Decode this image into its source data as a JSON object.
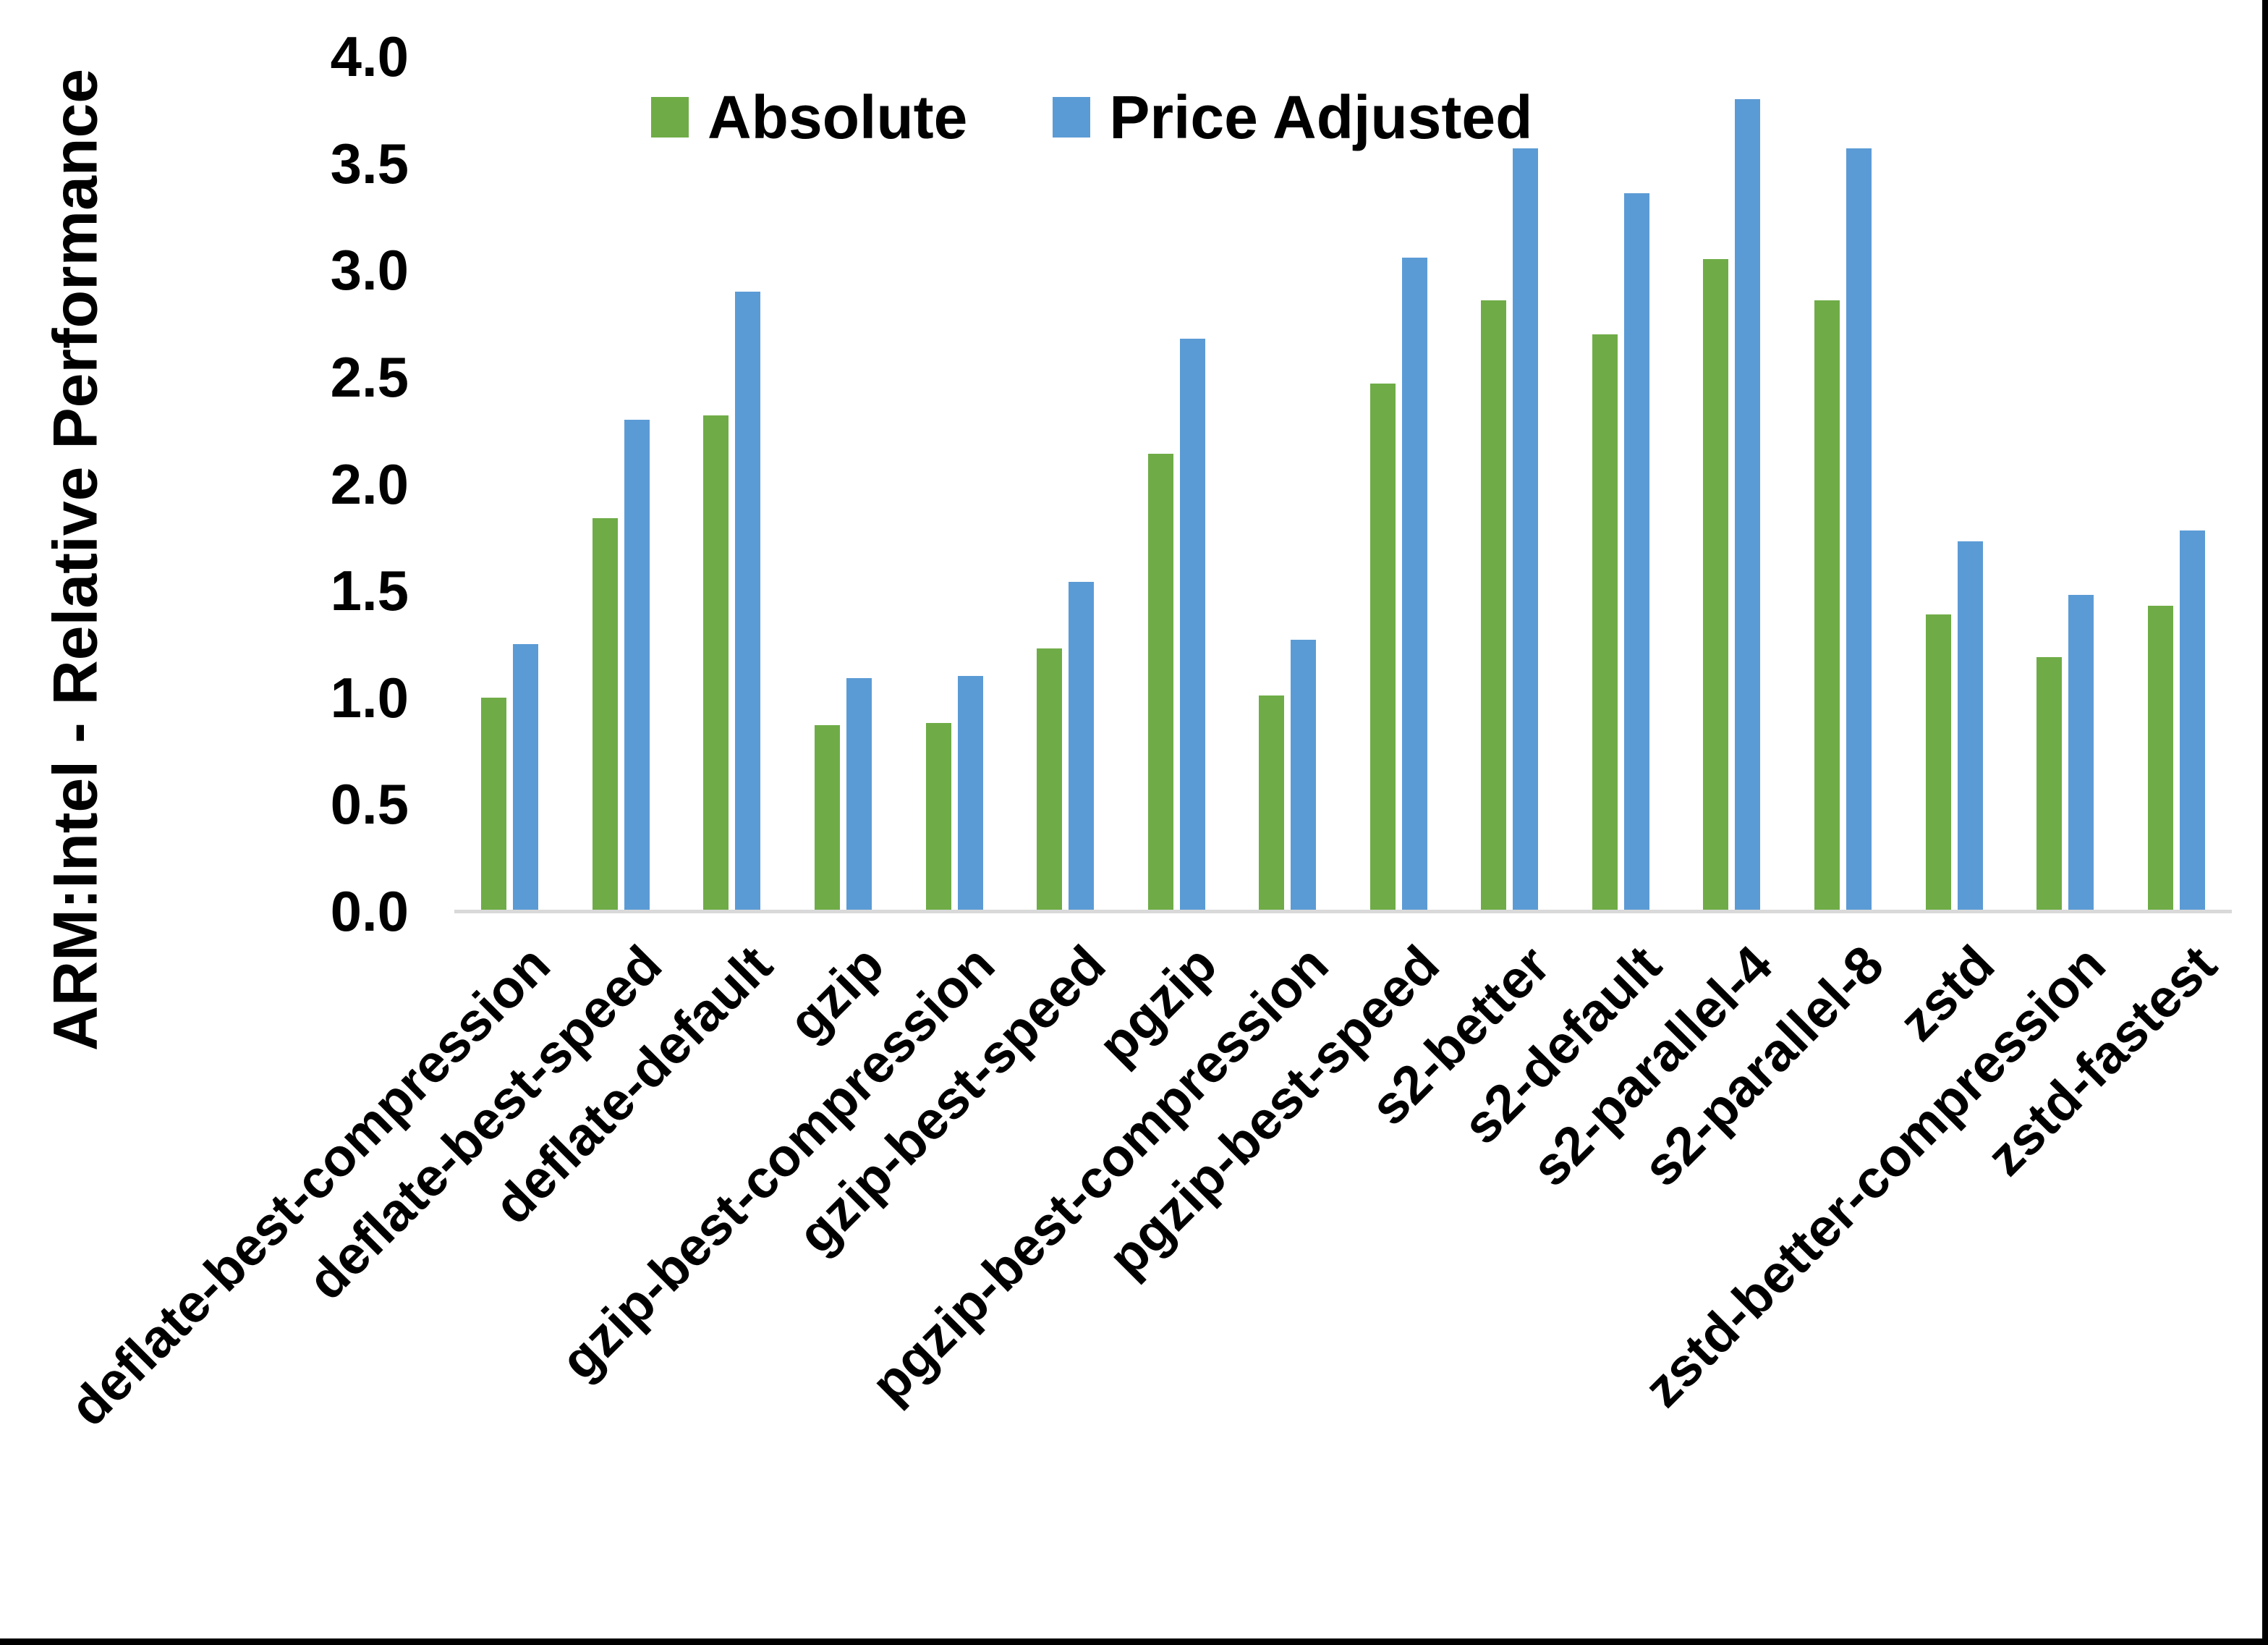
{
  "chart_data": {
    "type": "bar",
    "title": "",
    "ylabel": "ARM:Intel - Relative Performance",
    "xlabel": "",
    "ylim": [
      0.0,
      4.0
    ],
    "ytick_labels": [
      "0.0",
      "0.5",
      "1.0",
      "1.5",
      "2.0",
      "2.5",
      "3.0",
      "3.5",
      "4.0"
    ],
    "grid": false,
    "legend_position": "top-center",
    "axis_line_color": "#D9D9D9",
    "text_color": "#000000",
    "categories": [
      "deflate-best-compression",
      "deflate-best-speed",
      "deflate-default",
      "gzip",
      "gzip-best-compression",
      "gzip-best-speed",
      "pgzip",
      "pgzip-best-compression",
      "pgzip-best-speed",
      "s2-better",
      "s2-default",
      "s2-parallel-4",
      "s2-parallel-8",
      "zstd",
      "zstd-better-compression",
      "zstd-fastest"
    ],
    "series": [
      {
        "name": "Absolute",
        "color": "#6FAC47",
        "values": [
          1.0,
          1.84,
          2.32,
          0.87,
          0.88,
          1.23,
          2.14,
          1.01,
          2.47,
          2.86,
          2.7,
          3.05,
          2.86,
          1.39,
          1.19,
          1.43
        ]
      },
      {
        "name": "Price Adjusted",
        "color": "#5B9BD5",
        "values": [
          1.25,
          2.3,
          2.9,
          1.09,
          1.1,
          1.54,
          2.68,
          1.27,
          3.06,
          3.57,
          3.36,
          3.8,
          3.57,
          1.73,
          1.48,
          1.78
        ]
      }
    ]
  }
}
